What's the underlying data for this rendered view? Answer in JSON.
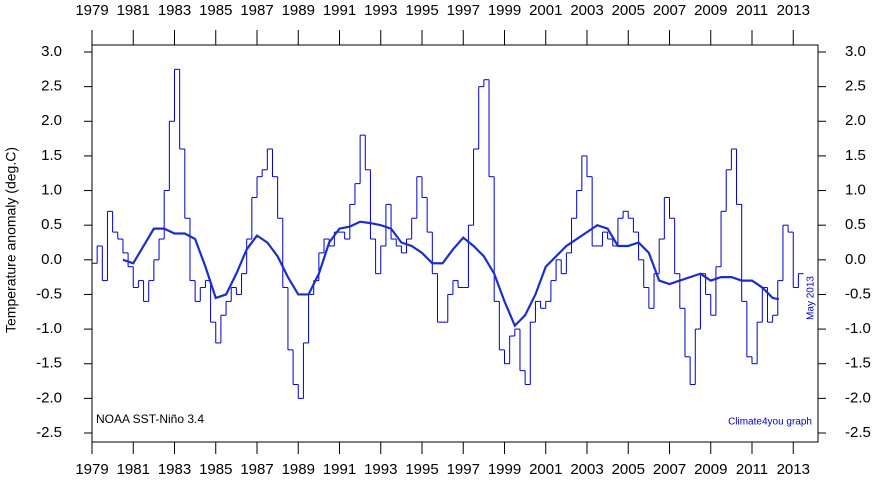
{
  "chart_data": {
    "type": "line",
    "y_label": "Temperature anomaly (deg.C)",
    "annotations": [
      "NOAA SST-Niño 3.4",
      "Climate4you graph",
      "May 2013"
    ],
    "xlim": [
      1979,
      2014.2
    ],
    "xticks": [
      1979,
      1981,
      1983,
      1985,
      1987,
      1989,
      1991,
      1993,
      1995,
      1997,
      1999,
      2001,
      2003,
      2005,
      2007,
      2009,
      2011,
      2013
    ],
    "ylim": [
      -2.5,
      3.0
    ],
    "yticks": [
      {
        "value": 3,
        "label": "3.0"
      },
      2.5,
      {
        "value": 2,
        "label": "2.0"
      },
      1.5,
      {
        "value": 1,
        "label": "1.0"
      },
      0.5,
      {
        "value": 0,
        "label": "0.0"
      },
      -0.5,
      {
        "value": -1,
        "label": "-1.0"
      },
      -1.5,
      {
        "value": -2,
        "label": "-2.0"
      },
      -2.5
    ],
    "series": [
      {
        "style": "step",
        "color": "#0000cc",
        "x": [
          1979.0,
          1979.25,
          1979.5,
          1979.75,
          1980.0,
          1980.25,
          1980.5,
          1980.75,
          1981.0,
          1981.25,
          1981.5,
          1981.75,
          1982.0,
          1982.25,
          1982.5,
          1982.75,
          1983.0,
          1983.25,
          1983.5,
          1983.75,
          1984.0,
          1984.25,
          1984.5,
          1984.75,
          1985.0,
          1985.25,
          1985.5,
          1985.75,
          1986.0,
          1986.25,
          1986.5,
          1986.75,
          1987.0,
          1987.25,
          1987.5,
          1987.75,
          1988.0,
          1988.25,
          1988.5,
          1988.75,
          1989.0,
          1989.25,
          1989.5,
          1989.75,
          1990.0,
          1990.25,
          1990.5,
          1990.75,
          1991.0,
          1991.25,
          1991.5,
          1991.75,
          1992.0,
          1992.25,
          1992.5,
          1992.75,
          1993.0,
          1993.25,
          1993.5,
          1993.75,
          1994.0,
          1994.25,
          1994.5,
          1994.75,
          1995.0,
          1995.25,
          1995.5,
          1995.75,
          1996.0,
          1996.25,
          1996.5,
          1996.75,
          1997.0,
          1997.25,
          1997.5,
          1997.75,
          1998.0,
          1998.25,
          1998.5,
          1998.75,
          1999.0,
          1999.25,
          1999.5,
          1999.75,
          2000.0,
          2000.25,
          2000.5,
          2000.75,
          2001.0,
          2001.25,
          2001.5,
          2001.75,
          2002.0,
          2002.25,
          2002.5,
          2002.75,
          2003.0,
          2003.25,
          2003.5,
          2003.75,
          2004.0,
          2004.25,
          2004.5,
          2004.75,
          2005.0,
          2005.25,
          2005.5,
          2005.75,
          2006.0,
          2006.25,
          2006.5,
          2006.75,
          2007.0,
          2007.25,
          2007.5,
          2007.75,
          2008.0,
          2008.25,
          2008.5,
          2008.75,
          2009.0,
          2009.25,
          2009.5,
          2009.75,
          2010.0,
          2010.25,
          2010.5,
          2010.75,
          2011.0,
          2011.25,
          2011.5,
          2011.75,
          2012.0,
          2012.25,
          2012.5,
          2012.75,
          2013.0,
          2013.25
        ],
        "values": [
          -0.05,
          0.2,
          -0.3,
          0.7,
          0.4,
          0.3,
          0.1,
          -0.1,
          -0.4,
          -0.3,
          -0.6,
          -0.3,
          0.0,
          0.3,
          1.0,
          2.0,
          2.75,
          1.6,
          0.6,
          -0.3,
          -0.6,
          -0.4,
          -0.3,
          -0.9,
          -1.2,
          -0.8,
          -0.6,
          -0.4,
          -0.5,
          -0.2,
          0.3,
          0.9,
          1.2,
          1.3,
          1.6,
          1.2,
          0.6,
          -0.4,
          -1.3,
          -1.8,
          -2.0,
          -1.2,
          -0.5,
          -0.3,
          0.1,
          0.3,
          0.2,
          0.4,
          0.4,
          0.3,
          0.8,
          1.1,
          1.8,
          1.3,
          0.3,
          -0.2,
          0.2,
          0.8,
          0.3,
          0.2,
          0.1,
          0.3,
          0.6,
          1.2,
          0.9,
          0.4,
          -0.2,
          -0.9,
          -0.9,
          -0.5,
          -0.3,
          -0.4,
          -0.4,
          0.5,
          1.6,
          2.5,
          2.6,
          1.2,
          -0.6,
          -1.3,
          -1.5,
          -1.1,
          -1.0,
          -1.6,
          -1.8,
          -0.9,
          -0.6,
          -0.7,
          -0.6,
          -0.3,
          0.0,
          -0.2,
          0.1,
          0.6,
          1.0,
          1.5,
          1.2,
          0.2,
          0.2,
          0.4,
          0.3,
          0.2,
          0.6,
          0.7,
          0.6,
          0.4,
          0.0,
          -0.4,
          -0.7,
          -0.2,
          0.3,
          0.9,
          0.6,
          -0.2,
          -0.7,
          -1.4,
          -1.8,
          -1.0,
          -0.2,
          -0.5,
          -0.8,
          -0.1,
          0.7,
          1.3,
          1.6,
          0.8,
          -0.6,
          -1.4,
          -1.5,
          -0.9,
          -0.4,
          -0.9,
          -0.8,
          -0.3,
          0.5,
          0.4,
          -0.4,
          -0.2
        ]
      },
      {
        "style": "line",
        "color": "#1a2ecc",
        "x": [
          1980.5,
          1981.0,
          1981.5,
          1982.0,
          1982.5,
          1983.0,
          1983.5,
          1984.0,
          1984.5,
          1985.0,
          1985.5,
          1986.0,
          1986.5,
          1987.0,
          1987.5,
          1988.0,
          1988.5,
          1989.0,
          1989.5,
          1990.0,
          1990.5,
          1991.0,
          1991.5,
          1992.0,
          1992.5,
          1993.0,
          1993.5,
          1994.0,
          1994.5,
          1995.0,
          1995.5,
          1996.0,
          1996.5,
          1997.0,
          1997.5,
          1998.0,
          1998.5,
          1999.0,
          1999.5,
          2000.0,
          2000.5,
          2001.0,
          2001.5,
          2002.0,
          2002.5,
          2003.0,
          2003.5,
          2004.0,
          2004.5,
          2005.0,
          2005.5,
          2006.0,
          2006.5,
          2007.0,
          2007.5,
          2008.0,
          2008.5,
          2009.0,
          2009.5,
          2010.0,
          2010.5,
          2011.0,
          2011.5,
          2012.0,
          2012.3
        ],
        "values": [
          0.0,
          -0.05,
          0.2,
          0.45,
          0.45,
          0.38,
          0.38,
          0.3,
          -0.1,
          -0.55,
          -0.5,
          -0.2,
          0.15,
          0.35,
          0.25,
          0.05,
          -0.25,
          -0.5,
          -0.5,
          -0.2,
          0.25,
          0.45,
          0.48,
          0.55,
          0.53,
          0.5,
          0.45,
          0.25,
          0.2,
          0.1,
          -0.05,
          -0.05,
          0.15,
          0.32,
          0.2,
          0.05,
          -0.2,
          -0.6,
          -0.95,
          -0.8,
          -0.5,
          -0.1,
          0.05,
          0.2,
          0.3,
          0.4,
          0.5,
          0.45,
          0.2,
          0.2,
          0.25,
          0.1,
          -0.3,
          -0.35,
          -0.3,
          -0.25,
          -0.2,
          -0.3,
          -0.25,
          -0.25,
          -0.3,
          -0.3,
          -0.4,
          -0.55,
          -0.57
        ]
      }
    ]
  }
}
